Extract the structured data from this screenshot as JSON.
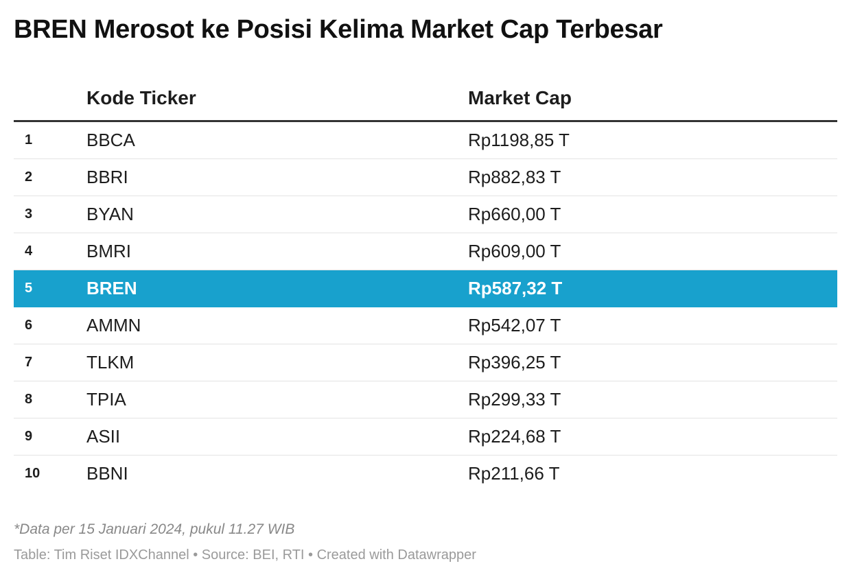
{
  "chart_data": {
    "type": "table",
    "title": "BREN Merosot ke Posisi Kelima Market Cap Terbesar",
    "columns": [
      "",
      "Kode Ticker",
      "Market Cap"
    ],
    "rows": [
      {
        "rank": "1",
        "ticker": "BBCA",
        "cap": "Rp1198,85 T"
      },
      {
        "rank": "2",
        "ticker": "BBRI",
        "cap": "Rp882,83 T"
      },
      {
        "rank": "3",
        "ticker": "BYAN",
        "cap": "Rp660,00 T"
      },
      {
        "rank": "4",
        "ticker": "BMRI",
        "cap": "Rp609,00 T"
      },
      {
        "rank": "5",
        "ticker": "BREN",
        "cap": "Rp587,32 T",
        "highlight": true
      },
      {
        "rank": "6",
        "ticker": "AMMN",
        "cap": "Rp542,07 T"
      },
      {
        "rank": "7",
        "ticker": "TLKM",
        "cap": "Rp396,25 T"
      },
      {
        "rank": "8",
        "ticker": "TPIA",
        "cap": "Rp299,33 T"
      },
      {
        "rank": "9",
        "ticker": "ASII",
        "cap": "Rp224,68 T"
      },
      {
        "rank": "10",
        "ticker": "BBNI",
        "cap": "Rp211,66 T"
      }
    ],
    "highlight_color": "#18a1cd",
    "note": "*Data per 15 Januari 2024, pukul 11.27 WIB",
    "footer": "Table: Tim Riset IDXChannel • Source: BEI, RTI • Created with Datawrapper"
  }
}
